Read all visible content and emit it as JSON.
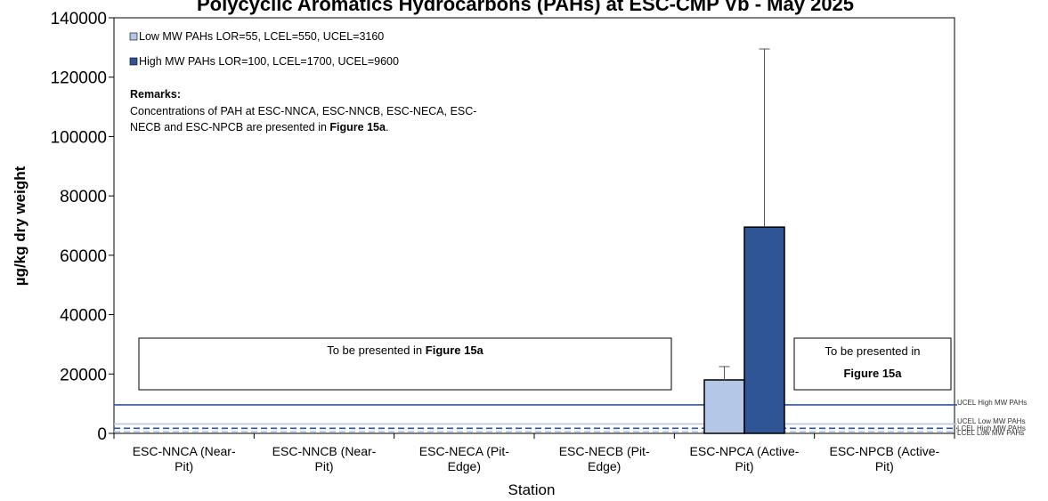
{
  "chart_data": {
    "type": "bar",
    "title": "Polycyclic Aromatics Hydrocarbons (PAHs) at ESC-CMP Vb - May 2025",
    "xlabel": "Station",
    "ylabel": "µg/kg dry weight",
    "ylim": [
      0,
      140000
    ],
    "yticks": [
      "0",
      "20000",
      "40000",
      "60000",
      "80000",
      "100000",
      "120000",
      "140000"
    ],
    "ytick_values": [
      0,
      20000,
      40000,
      60000,
      80000,
      100000,
      120000,
      140000
    ],
    "grid": false,
    "legend_position": "top-left",
    "categories": [
      "ESC-NNCA (Near-Pit)",
      "ESC-NNCB (Near-Pit)",
      "ESC-NECA (Pit-Edge)",
      "ESC-NECB (Pit-Edge)",
      "ESC-NPCA (Active-Pit)",
      "ESC-NPCB (Active-Pit)"
    ],
    "category_lines": [
      [
        "ESC-NNCA (Near-",
        "Pit)"
      ],
      [
        "ESC-NNCB (Near-",
        "Pit)"
      ],
      [
        "ESC-NECA (Pit-",
        "Edge)"
      ],
      [
        "ESC-NECB (Pit-",
        "Edge)"
      ],
      [
        "ESC-NPCA (Active-",
        "Pit)"
      ],
      [
        "ESC-NPCB (Active-",
        "Pit)"
      ]
    ],
    "series": [
      {
        "name": "Low MW PAHs LOR=55, LCEL=550, UCEL=3160",
        "color": "#b4c7e7",
        "values": [
          null,
          null,
          null,
          null,
          18000,
          null
        ],
        "error_upper": [
          null,
          null,
          null,
          null,
          22500,
          null
        ]
      },
      {
        "name": "High MW PAHs LOR=100, LCEL=1700, UCEL=9600",
        "color": "#2f5597",
        "values": [
          null,
          null,
          null,
          null,
          69500,
          null
        ],
        "error_upper": [
          null,
          null,
          null,
          null,
          129500,
          null
        ]
      }
    ],
    "reference_lines": [
      {
        "label": "UCEL High MW PAHs",
        "value": 9600,
        "color": "#2f5597",
        "style": "solid"
      },
      {
        "label": "UCEL Low MW PAHs",
        "value": 3160,
        "color": "#b4c7e7",
        "style": "solid"
      },
      {
        "label": "LCEL High MW PAHs",
        "value": 1700,
        "color": "#2f5597",
        "style": "dashed"
      },
      {
        "label": "LCEL Low MW PAHs",
        "value": 550,
        "color": "#b4c7e7",
        "style": "dashed"
      }
    ],
    "remarks": {
      "heading": "Remarks:",
      "line1": "Concentrations of PAH at ESC-NNCA, ESC-NNCB, ESC-NECA, ESC-",
      "line2_prefix": "NECB and ESC-NPCB are presented in ",
      "line2_bold": "Figure 15a",
      "line2_suffix": "."
    },
    "annotation_boxes": [
      {
        "text": "To be presented in ",
        "bold": "Figure 15a"
      },
      {
        "text": "To be presented in",
        "bold": "Figure 15a"
      }
    ]
  }
}
